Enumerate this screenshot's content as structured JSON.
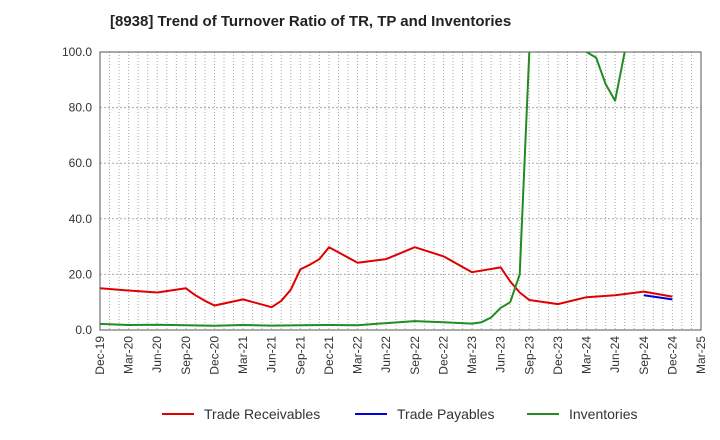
{
  "chart_data": {
    "type": "line",
    "title": "[8938]  Trend of Turnover Ratio of TR, TP and Inventories",
    "ylim": [
      0,
      100
    ],
    "y_ticks": [
      "0.0",
      "20.0",
      "40.0",
      "60.0",
      "80.0",
      "100.0"
    ],
    "x_ticks": [
      "Dec-19",
      "Mar-20",
      "Jun-20",
      "Sep-20",
      "Dec-20",
      "Mar-21",
      "Jun-21",
      "Sep-21",
      "Dec-21",
      "Mar-22",
      "Jun-22",
      "Sep-22",
      "Dec-22",
      "Mar-23",
      "Jun-23",
      "Sep-23",
      "Dec-23",
      "Mar-24",
      "Jun-24",
      "Sep-24",
      "Dec-24",
      "Mar-25"
    ],
    "grid": true,
    "legend_position": "bottom",
    "series": [
      {
        "name": "Trade Receivables",
        "color": "#e00000",
        "x": [
          "Dec-19",
          "Mar-20",
          "Jun-20",
          "Sep-20",
          "Oct-20",
          "Nov-20",
          "Dec-20",
          "Mar-21",
          "Jun-21",
          "Jul-21",
          "Aug-21",
          "Sep-21",
          "Oct-21",
          "Nov-21",
          "Dec-21",
          "Mar-22",
          "Jun-22",
          "Sep-22",
          "Dec-22",
          "Mar-23",
          "Jun-23",
          "Jul-23",
          "Aug-23",
          "Sep-23",
          "Dec-23",
          "Mar-24",
          "Jun-24",
          "Sep-24",
          "Dec-24"
        ],
        "values": [
          15.0,
          14.2,
          13.5,
          15.0,
          12.5,
          10.5,
          8.8,
          11.0,
          8.2,
          10.5,
          14.5,
          21.8,
          23.5,
          25.5,
          29.8,
          24.2,
          25.5,
          29.8,
          26.5,
          20.8,
          22.5,
          17.5,
          13.5,
          10.8,
          9.3,
          11.8,
          12.5,
          13.8,
          12.0
        ]
      },
      {
        "name": "Trade Payables",
        "color": "#0000dd",
        "x": [
          "Sep-24",
          "Dec-24"
        ],
        "values": [
          12.5,
          11.0
        ]
      },
      {
        "name": "Inventories",
        "color": "#228b22",
        "x": [
          "Dec-19",
          "Mar-20",
          "Jun-20",
          "Sep-20",
          "Dec-20",
          "Mar-21",
          "Jun-21",
          "Sep-21",
          "Dec-21",
          "Mar-22",
          "Jun-22",
          "Sep-22",
          "Dec-22",
          "Mar-23",
          "Apr-23",
          "May-23",
          "Jun-23",
          "Jul-23",
          "Aug-23",
          "Sep-23",
          "Dec-23",
          "Mar-24",
          "Apr-24",
          "May-24",
          "Jun-24",
          "Jul-24"
        ],
        "values": [
          2.2,
          1.8,
          1.9,
          1.7,
          1.5,
          1.8,
          1.6,
          1.7,
          1.8,
          1.7,
          2.5,
          3.2,
          2.8,
          2.3,
          2.8,
          4.5,
          8.0,
          10.0,
          20.0,
          100.0,
          130.0,
          100.0,
          98.0,
          88.5,
          82.5,
          100.0
        ]
      }
    ]
  }
}
